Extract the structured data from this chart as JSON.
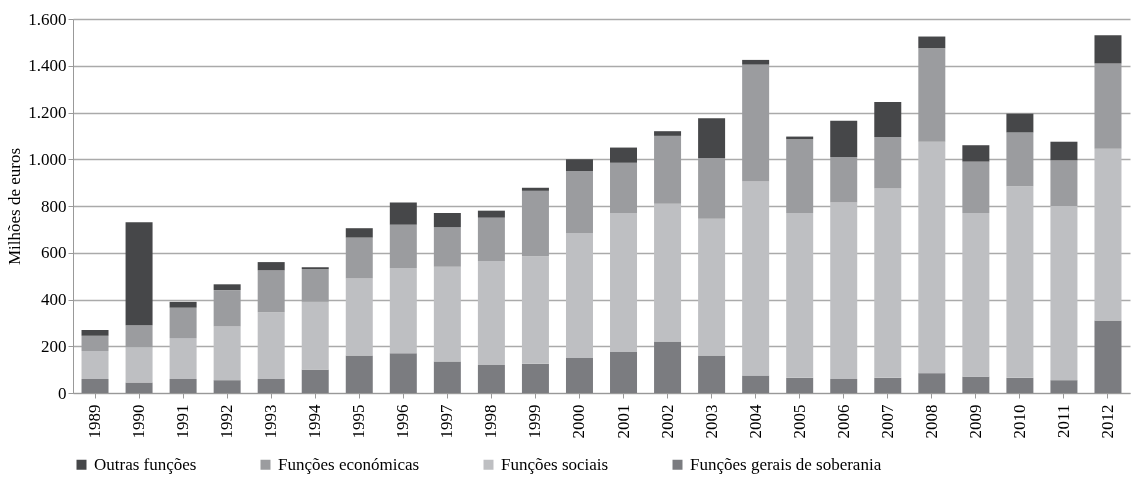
{
  "chart_data": {
    "type": "bar",
    "stacked": true,
    "ylabel": "Milhões de euros",
    "categories": [
      "1989",
      "1990",
      "1991",
      "1992",
      "1993",
      "1994",
      "1995",
      "1996",
      "1997",
      "1998",
      "1999",
      "2000",
      "2001",
      "2002",
      "2003",
      "2004",
      "2005",
      "2006",
      "2007",
      "2008",
      "2009",
      "2010",
      "2011",
      "2012"
    ],
    "series": [
      {
        "name": "Funções gerais de soberania",
        "color": "#7b7c80",
        "values": [
          60,
          45,
          60,
          55,
          60,
          100,
          160,
          170,
          135,
          120,
          125,
          150,
          175,
          220,
          160,
          75,
          65,
          60,
          65,
          85,
          70,
          65,
          55,
          310
        ]
      },
      {
        "name": "Funções sociais",
        "color": "#bebfc2",
        "values": [
          120,
          150,
          175,
          230,
          285,
          290,
          330,
          365,
          405,
          445,
          460,
          535,
          595,
          590,
          585,
          830,
          705,
          755,
          810,
          990,
          700,
          820,
          745,
          735
        ]
      },
      {
        "name": "Funções económicas",
        "color": "#9b9c9f",
        "values": [
          65,
          95,
          130,
          155,
          180,
          140,
          175,
          185,
          170,
          185,
          280,
          265,
          215,
          290,
          260,
          500,
          315,
          195,
          220,
          400,
          220,
          230,
          195,
          365
        ]
      },
      {
        "name": "Outras funções",
        "color": "#464749",
        "values": [
          25,
          440,
          25,
          25,
          35,
          8,
          40,
          95,
          60,
          30,
          13,
          50,
          65,
          20,
          170,
          20,
          12,
          155,
          150,
          50,
          70,
          80,
          80,
          120
        ]
      }
    ],
    "ylim": [
      0,
      1600
    ],
    "yticks": [
      0,
      {
        "value": 200,
        "label": "200"
      },
      {
        "value": 400,
        "label": "400"
      },
      {
        "value": 600,
        "label": "600"
      },
      {
        "value": 800,
        "label": "800"
      },
      {
        "value": 1000,
        "label": "1.000"
      },
      {
        "value": 1200,
        "label": "1.200"
      },
      {
        "value": 1400,
        "label": "1.400"
      },
      {
        "value": 1600,
        "label": "1.600"
      }
    ],
    "grid": "y",
    "legend": "bottom"
  }
}
